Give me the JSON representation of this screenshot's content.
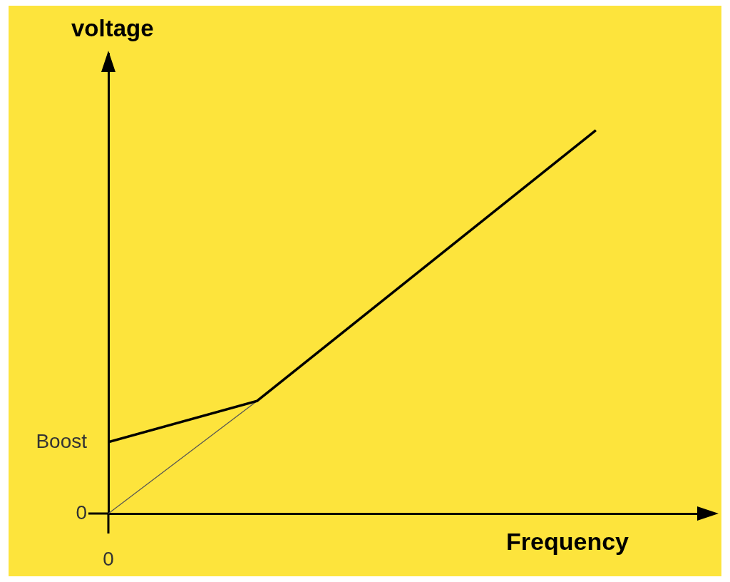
{
  "chart_data": {
    "type": "line",
    "x_label": "Frequency",
    "y_label": "voltage",
    "xlim": [
      0,
      124
    ],
    "ylim": [
      0,
      94
    ],
    "xticks": [
      0
    ],
    "yticks": [
      0,
      {
        "value": 14.6,
        "label": "Boost"
      }
    ],
    "grid": false,
    "series": [
      {
        "color": "#000000",
        "x": [
          0,
          30.5,
          100
        ],
        "values": [
          14.6,
          23,
          78.3
        ],
        "line_style": "solid",
        "marker": "none"
      },
      {
        "color": "#555555",
        "x": [
          0,
          30.5
        ],
        "values": [
          0,
          23
        ],
        "line_style": "solid",
        "marker": "none"
      }
    ]
  }
}
